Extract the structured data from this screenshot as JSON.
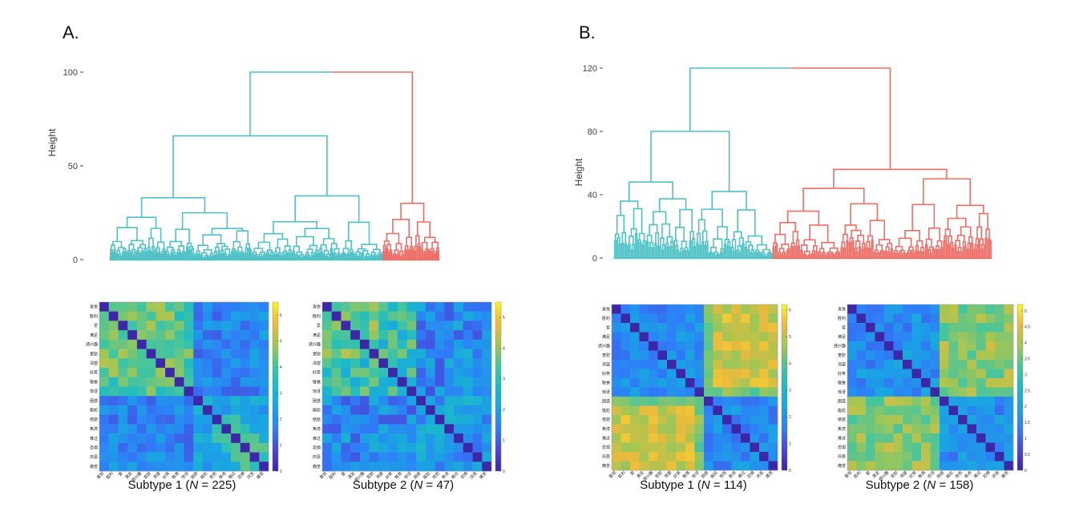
{
  "panels": [
    {
      "id": "A",
      "label": "A.",
      "dendrogram": {
        "ylabel": "Height",
        "yticks": [
          0,
          50,
          100
        ],
        "ymax": 100,
        "colors": [
          "#4FC2C6",
          "#EE6F67"
        ],
        "n_leaves": 272,
        "cluster_sizes": [
          225,
          47
        ]
      },
      "heatmaps": [
        {
          "title_prefix": "Subtype 1 (",
          "n_symbol": "N",
          "title_suffix": " = 225)",
          "cb_ticks": [
            "0",
            "1",
            "2",
            "3",
            "4",
            "5",
            "6"
          ],
          "vmax": 6.5,
          "seed": 11
        },
        {
          "title_prefix": "Subtype 2 (",
          "n_symbol": "N",
          "title_suffix": " = 47)",
          "cb_ticks": [
            "0",
            "1",
            "2",
            "3",
            "4",
            "5"
          ],
          "vmax": 5.5,
          "seed": 23
        }
      ]
    },
    {
      "id": "B",
      "label": "B.",
      "dendrogram": {
        "ylabel": "Height",
        "yticks": [
          0,
          40,
          80,
          120
        ],
        "ymax": 120,
        "colors": [
          "#4FC2C6",
          "#EE6F67"
        ],
        "n_leaves": 272,
        "cluster_sizes": [
          114,
          158
        ]
      },
      "heatmaps": [
        {
          "title_prefix": "Subtype 1 (",
          "n_symbol": "N",
          "title_suffix": " = 114)",
          "cb_ticks": [
            "0",
            "1",
            "2",
            "3",
            "4",
            "5",
            "6"
          ],
          "vmax": 6.2,
          "seed": 37
        },
        {
          "title_prefix": "Subtype 2 (",
          "n_symbol": "N",
          "title_suffix": " = 158)",
          "cb_ticks": [
            "0",
            "0.5",
            "1",
            "1.5",
            "2",
            "2.5",
            "3",
            "3.5",
            "4",
            "4.5",
            "5"
          ],
          "vmax": 5.2,
          "seed": 53
        }
      ]
    }
  ],
  "emotions": [
    "喜悦",
    "胜利",
    "爱",
    "满足",
    "感兴趣",
    "宽慰",
    "渴望",
    "好笑",
    "敬畏",
    "惊讶",
    "困惑",
    "尴尬",
    "愤怒",
    "焦虑",
    "难过",
    "恐惧",
    "厌恶",
    "痛苦"
  ]
}
